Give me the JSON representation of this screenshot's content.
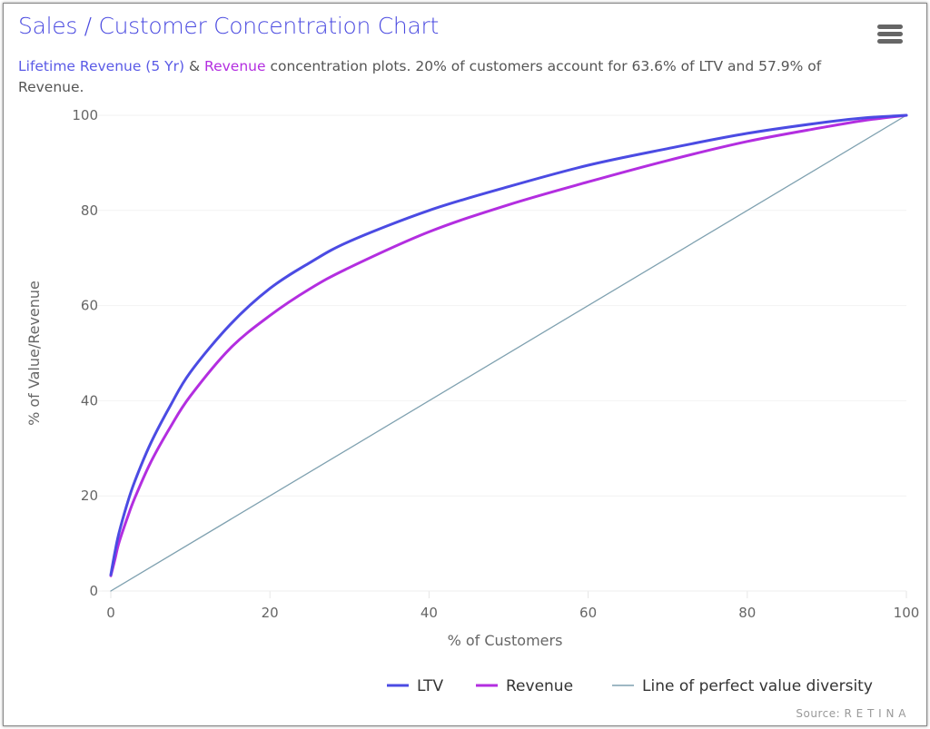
{
  "header": {
    "title": "Sales / Customer Concentration Chart",
    "subtitle_ltv": "Lifetime Revenue (5 Yr)",
    "subtitle_amp": " & ",
    "subtitle_revenue": "Revenue",
    "subtitle_rest": " concentration plots. 20% of customers account for 63.6% of LTV and 57.9% of Revenue.",
    "menu_icon": "hamburger-menu-icon"
  },
  "chart_data": {
    "type": "line",
    "title": "Sales / Customer Concentration Chart",
    "xlabel": "% of Customers",
    "ylabel": "% of Value/Revenue",
    "xlim": [
      0,
      100
    ],
    "ylim": [
      0,
      100
    ],
    "xticks": [
      "0",
      "20",
      "40",
      "60",
      "80",
      "100"
    ],
    "yticks": [
      "0",
      "20",
      "40",
      "60",
      "80",
      "100"
    ],
    "legend_position": "bottom-right",
    "source": "Source: R E T I N A",
    "x": [
      0,
      0.5,
      1,
      2,
      3,
      5,
      7.5,
      10,
      15,
      20,
      25,
      30,
      40,
      50,
      60,
      70,
      80,
      90,
      95,
      100
    ],
    "series": [
      {
        "name": "LTV",
        "color": "#4b4be3",
        "values": [
          3.4,
          8,
          12,
          18,
          23,
          31,
          39,
          46,
          56,
          63.6,
          69,
          73.5,
          80,
          85,
          89.5,
          93,
          96.2,
          98.6,
          99.5,
          100
        ]
      },
      {
        "name": "Revenue",
        "color": "#b32ee0",
        "values": [
          3.2,
          6.5,
          10,
          15,
          19.5,
          27,
          34.5,
          41,
          51,
          57.9,
          63.5,
          68,
          75.5,
          81.2,
          86,
          90.5,
          94.5,
          97.6,
          99,
          100
        ]
      },
      {
        "name": "Line of perfect value diversity",
        "color": "#7fa1b0",
        "values": [
          0,
          0.5,
          1,
          2,
          3,
          5,
          7.5,
          10,
          15,
          20,
          25,
          30,
          40,
          50,
          60,
          70,
          80,
          90,
          95,
          100
        ]
      }
    ]
  }
}
